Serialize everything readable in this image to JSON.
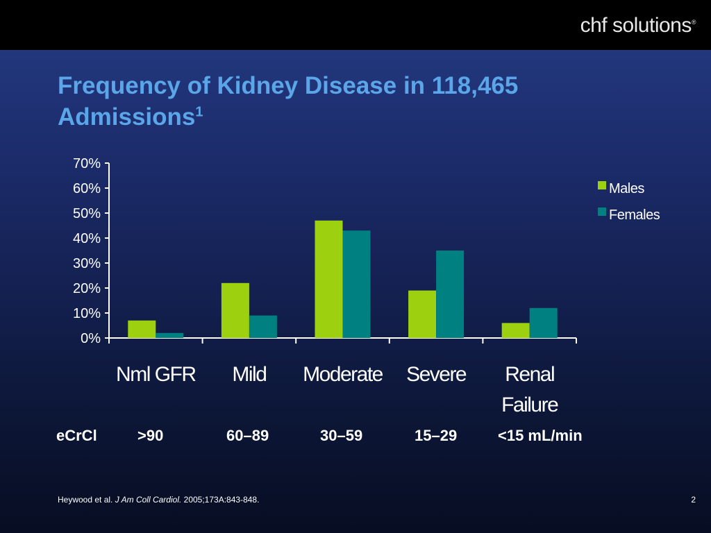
{
  "logo": {
    "text_a": "chf",
    "text_b": "solutions",
    "mark": "®"
  },
  "slide": {
    "title_line1": "Frequency of Kidney Disease in 118,465",
    "title_line2": "Admissions",
    "title_sup": "1",
    "ecrcl_label": "eCrCl",
    "ecrcl_values": [
      ">90",
      "60–89",
      "30–59",
      "15–29",
      "<15 mL/min"
    ],
    "reference_authors": "Heywood et al.",
    "reference_journal": "J Am Coll Cardiol.",
    "reference_details": "2005;173A:843-848.",
    "page_number": "2"
  },
  "chart_data": {
    "type": "bar",
    "categories": [
      "Nml GFR",
      "Mild",
      "Moderate",
      "Severe",
      "Renal Failure"
    ],
    "series": [
      {
        "name": "Males",
        "values": [
          7,
          22,
          47,
          19,
          6
        ],
        "color": "#9dd10f"
      },
      {
        "name": "Females",
        "values": [
          2,
          9,
          43,
          35,
          12
        ],
        "color": "#008080"
      }
    ],
    "ylim": [
      0,
      70
    ],
    "yticks": [
      "0%",
      "10%",
      "20%",
      "30%",
      "40%",
      "50%",
      "60%",
      "70%"
    ],
    "legend_position": "right",
    "grid": false
  }
}
